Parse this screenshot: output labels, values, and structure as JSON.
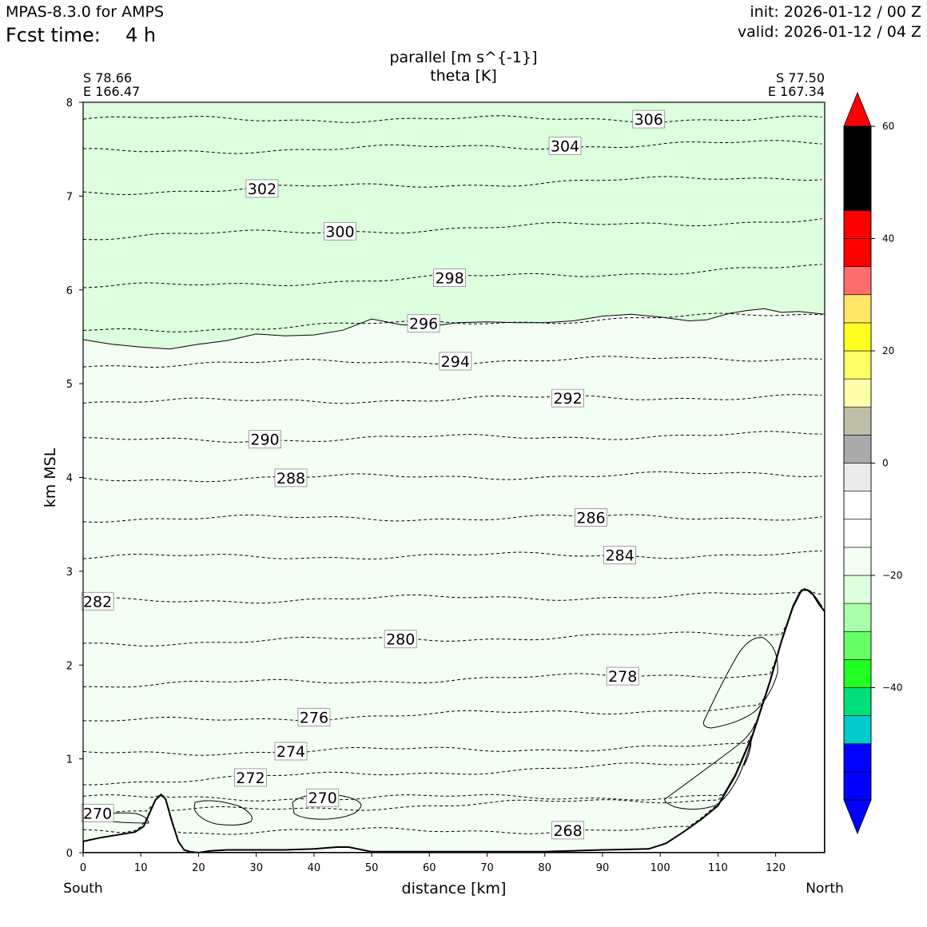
{
  "header": {
    "model": "MPAS-8.3.0 for AMPS",
    "fcst_label": "Fcst time:",
    "fcst_value": "4 h",
    "init": "init: 2026-01-12 / 00 Z",
    "valid": "valid: 2026-01-12 / 04 Z"
  },
  "chart_data": {
    "type": "cross-section contour",
    "title_lines": [
      "parallel [m s^{-1}]",
      "theta [K]"
    ],
    "start_point": {
      "lat": "S 78.66",
      "lon": "E 166.47"
    },
    "end_point": {
      "lat": "S 77.50",
      "lon": "E 167.34"
    },
    "xlabel": "distance [km]",
    "ylabel": "km MSL",
    "x_end_labels": {
      "left": "South",
      "right": "North"
    },
    "xlim": [
      0,
      128.5
    ],
    "ylim": [
      0,
      8
    ],
    "x_ticks": [
      0,
      10,
      20,
      30,
      40,
      50,
      60,
      70,
      80,
      90,
      100,
      110,
      120
    ],
    "y_ticks": [
      0,
      1,
      2,
      3,
      4,
      5,
      6,
      7,
      8
    ],
    "terrain": {
      "x": [
        0,
        3,
        6,
        9,
        10.5,
        11.5,
        12.5,
        13.5,
        14.3,
        15.3,
        16.5,
        17.5,
        18.5,
        20,
        22,
        25,
        30,
        35,
        40,
        44,
        46,
        50,
        60,
        70,
        80,
        90,
        98,
        101,
        104,
        107,
        110,
        113,
        116,
        119,
        121,
        123,
        124.5,
        125.5,
        126.5,
        127.5,
        128.5
      ],
      "y": [
        0.12,
        0.16,
        0.19,
        0.22,
        0.28,
        0.42,
        0.56,
        0.62,
        0.57,
        0.35,
        0.12,
        0.03,
        0.01,
        0.0,
        0.02,
        0.03,
        0.03,
        0.03,
        0.04,
        0.06,
        0.06,
        0.01,
        0.01,
        0.01,
        0.01,
        0.03,
        0.04,
        0.1,
        0.22,
        0.35,
        0.5,
        0.82,
        1.25,
        1.82,
        2.25,
        2.62,
        2.8,
        2.8,
        2.75,
        2.65,
        2.57
      ]
    },
    "theta_contours": [
      {
        "level": 306,
        "y_left": 7.82,
        "y_right": 7.82,
        "label_x": 98
      },
      {
        "level": 304,
        "y_left": 7.47,
        "y_right": 7.57,
        "label_x": 83.5
      },
      {
        "level": 302,
        "y_left": 7.04,
        "y_right": 7.21,
        "label_x": 31
      },
      {
        "level": 300,
        "y_left": 6.56,
        "y_right": 6.75,
        "label_x": 44.5
      },
      {
        "level": 298,
        "y_left": 6.02,
        "y_right": 6.24,
        "label_x": 63.5
      },
      {
        "level": 296,
        "y_left": 5.56,
        "y_right": 5.74,
        "label_x": 59
      },
      {
        "level": 294,
        "y_left": 5.2,
        "y_right": 5.28,
        "label_x": 64.5
      },
      {
        "level": 292,
        "y_left": 4.8,
        "y_right": 4.87,
        "label_x": 84
      },
      {
        "level": 290,
        "y_left": 4.39,
        "y_right": 4.46,
        "label_x": 31.5
      },
      {
        "level": 288,
        "y_left": 3.98,
        "y_right": 4.04,
        "label_x": 36
      },
      {
        "level": 286,
        "y_left": 3.56,
        "y_right": 3.58,
        "label_x": 88
      },
      {
        "level": 284,
        "y_left": 3.15,
        "y_right": 3.18,
        "label_x": 93
      },
      {
        "level": 282,
        "y_left": 2.68,
        "y_right": 2.75,
        "label_x": 2.5
      },
      {
        "level": 280,
        "y_left": 2.23,
        "y_right": 2.34,
        "label_x": 55
      },
      {
        "level": 278,
        "y_left": 1.78,
        "y_right": 1.92,
        "label_x": 93.5
      },
      {
        "level": 276,
        "y_left": 1.39,
        "y_right": 1.56,
        "label_x": 40
      },
      {
        "level": 274,
        "y_left": 1.06,
        "y_right": 1.14,
        "label_x": 36
      },
      {
        "level": 272,
        "y_left": 0.75,
        "y_right": 0.98,
        "label_x": 29
      },
      {
        "level": 270,
        "y_left": 0.42,
        "y_right": 0.6,
        "label_x": 2.5
      },
      {
        "level": 270,
        "y_left": 0.58,
        "y_right": 0.6,
        "label_x": 41.5
      },
      {
        "level": 268,
        "y_left": 0.22,
        "y_right": 0.25,
        "label_x": 84
      }
    ],
    "wind_zero_contour": {
      "x": [
        0,
        5,
        10,
        15,
        20,
        25,
        30,
        35,
        40,
        45,
        50,
        55,
        60,
        65,
        70,
        75,
        80,
        85,
        90,
        95,
        100,
        105,
        108,
        112,
        115,
        118,
        121,
        124,
        128.5
      ],
      "y": [
        5.47,
        5.42,
        5.39,
        5.37,
        5.42,
        5.46,
        5.53,
        5.51,
        5.52,
        5.57,
        5.69,
        5.63,
        5.61,
        5.65,
        5.66,
        5.65,
        5.65,
        5.67,
        5.72,
        5.74,
        5.71,
        5.67,
        5.68,
        5.75,
        5.78,
        5.8,
        5.76,
        5.77,
        5.74
      ]
    },
    "colorbar": {
      "min": -60,
      "max": 60,
      "step": 5,
      "ticks": [
        -40,
        -20,
        0,
        20,
        40,
        60
      ],
      "tick_labels": [
        "−40",
        "−20",
        "0",
        "20",
        "40",
        "60"
      ],
      "colors": [
        "#0000ff",
        "#0000ff",
        "#0000ff",
        "#00cccc",
        "#00e07a",
        "#22ff22",
        "#66ff66",
        "#aaffaa",
        "#ddffdd",
        "#f3fff3",
        "#ffffff",
        "#ffffff",
        "#ebebeb",
        "#aaaaaa",
        "#bfbfa8",
        "#ffffaa",
        "#ffff66",
        "#ffff22",
        "#ffe866",
        "#ff6e6e",
        "#ff0000",
        "#ff0000"
      ]
    },
    "fills": {
      "upper_region": "#ddffdd",
      "lower_region": "#f3fff3",
      "terrain": "#ffffff"
    }
  }
}
